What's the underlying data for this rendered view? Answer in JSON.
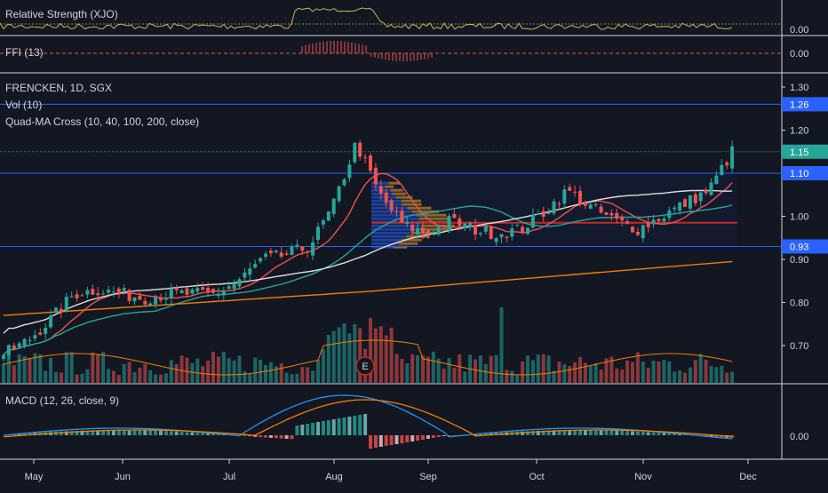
{
  "panes": {
    "rs": {
      "label": "Relative Strength (XJO)",
      "value_tag": "0.00"
    },
    "ffi": {
      "label": "FFI (13)",
      "value_tag": "0.00"
    },
    "main": {
      "title": "FRENCKEN, 1D, SGX",
      "vol_label": "Vol (10)",
      "ma_label": "Quad-MA Cross (10, 40, 100, 200, close)",
      "earnings_marker": "E"
    },
    "macd": {
      "label": "MACD (12, 26, close, 9)",
      "value_tag": "0.00"
    }
  },
  "x_axis": {
    "labels": [
      "May",
      "Jun",
      "Jul",
      "Aug",
      "Sep",
      "Oct",
      "Nov",
      "Dec"
    ]
  },
  "colors": {
    "background": "#131722",
    "up": "#26a69a",
    "down": "#ef5350",
    "level_line": "#2962ff",
    "ma10": "#ef5350",
    "ma40": "#26a69a",
    "ma100": "#e0e0e0",
    "ma200": "#f57c00",
    "rs_line": "#c9b458",
    "macd_line": "#2196f3",
    "signal_line": "#f57c00"
  },
  "chart_data": {
    "type": "candlestick",
    "title": "FRENCKEN, 1D, SGX",
    "y_axis": {
      "ticks": [
        "1.30",
        "1.20",
        "1.10",
        "1.00",
        "0.90",
        "0.80",
        "0.70"
      ],
      "range": [
        0.6,
        1.3
      ]
    },
    "x_axis": {
      "months": [
        "May",
        "Jun",
        "Jul",
        "Aug",
        "Sep",
        "Oct",
        "Nov",
        "Dec"
      ]
    },
    "price_tags": [
      "1.26",
      "1.15",
      "1.10",
      "0.93"
    ],
    "horizontal_levels": [
      1.26,
      1.1,
      0.93
    ],
    "last_price": 1.15,
    "weekly_close": [
      [
        "Apr 24",
        0.68
      ],
      [
        "May 01",
        0.71
      ],
      [
        "May 08",
        0.76
      ],
      [
        "May 15",
        0.82
      ],
      [
        "May 22",
        0.83
      ],
      [
        "May 29",
        0.82
      ],
      [
        "Jun 05",
        0.81
      ],
      [
        "Jun 12",
        0.82
      ],
      [
        "Jun 19",
        0.82
      ],
      [
        "Jun 26",
        0.82
      ],
      [
        "Jul 03",
        0.85
      ],
      [
        "Jul 10",
        0.9
      ],
      [
        "Jul 17",
        0.91
      ],
      [
        "Jul 24",
        0.93
      ],
      [
        "Jul 31",
        1.02
      ],
      [
        "Aug 07",
        1.17
      ],
      [
        "Aug 14",
        1.05
      ],
      [
        "Aug 21",
        0.98
      ],
      [
        "Aug 28",
        0.96
      ],
      [
        "Sep 04",
        0.99
      ],
      [
        "Sep 11",
        0.97
      ],
      [
        "Sep 18",
        0.96
      ],
      [
        "Sep 25",
        0.97
      ],
      [
        "Oct 02",
        1.01
      ],
      [
        "Oct 09",
        1.06
      ],
      [
        "Oct 16",
        1.02
      ],
      [
        "Oct 23",
        0.99
      ],
      [
        "Oct 30",
        0.97
      ],
      [
        "Nov 06",
        1.0
      ],
      [
        "Nov 13",
        1.03
      ],
      [
        "Nov 20",
        1.06
      ],
      [
        "Nov 27",
        1.15
      ]
    ],
    "macd": {
      "zero_tag": "0.00"
    }
  }
}
